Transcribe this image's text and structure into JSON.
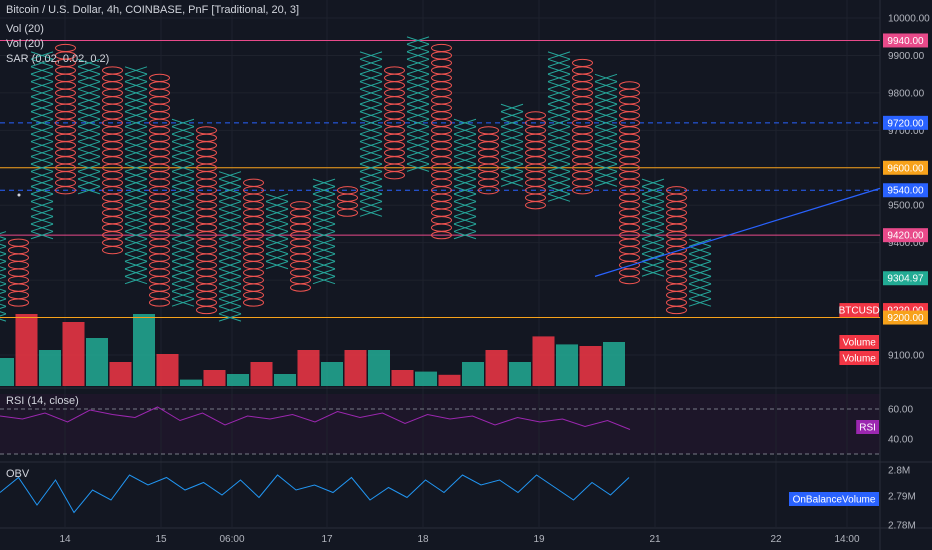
{
  "legend": {
    "title": "Bitcoin / U.S. Dollar, 4h, COINBASE, PnF [Traditional, 20, 3]",
    "vol1": "Vol (20)",
    "vol2": "Vol (20)",
    "sar": "SAR (0.02, 0.02, 0.2)",
    "rsi": "RSI (14, close)",
    "obv": "OBV"
  },
  "colors": {
    "bg": "#131722",
    "x": "#26a69a",
    "o": "#ef5350",
    "pink": "#e84a8a",
    "orange": "#f7a21b",
    "blue": "#2962ff",
    "rsi": "#9c27b0",
    "obv": "#2196f3",
    "grid": "#1e222d"
  },
  "chart_data": {
    "type": "pnf",
    "price_axis": {
      "ticks": [
        "10000.00",
        "9900.00",
        "9800.00",
        "9700.00",
        "9600.00",
        "9500.00",
        "9400.00",
        "9300.00",
        "9200.00",
        "9100.00"
      ],
      "range": [
        9060,
        10040
      ]
    },
    "x_axis": {
      "ticks": [
        "14",
        "15",
        "06:00",
        "17",
        "18",
        "19",
        "21",
        "22",
        "14:00"
      ]
    },
    "box_size": 20,
    "columns": [
      {
        "t": "X",
        "lo": 9200,
        "hi": 9420
      },
      {
        "t": "O",
        "lo": 9240,
        "hi": 9400
      },
      {
        "t": "X",
        "lo": 9420,
        "hi": 9900
      },
      {
        "t": "O",
        "lo": 9540,
        "hi": 9920
      },
      {
        "t": "X",
        "lo": 9540,
        "hi": 9880
      },
      {
        "t": "O",
        "lo": 9380,
        "hi": 9860
      },
      {
        "t": "X",
        "lo": 9300,
        "hi": 9860
      },
      {
        "t": "O",
        "lo": 9240,
        "hi": 9840
      },
      {
        "t": "X",
        "lo": 9240,
        "hi": 9720
      },
      {
        "t": "O",
        "lo": 9220,
        "hi": 9700
      },
      {
        "t": "X",
        "lo": 9200,
        "hi": 9580
      },
      {
        "t": "O",
        "lo": 9240,
        "hi": 9560
      },
      {
        "t": "X",
        "lo": 9340,
        "hi": 9520
      },
      {
        "t": "O",
        "lo": 9280,
        "hi": 9500
      },
      {
        "t": "X",
        "lo": 9300,
        "hi": 9560
      },
      {
        "t": "O",
        "lo": 9480,
        "hi": 9540
      },
      {
        "t": "X",
        "lo": 9480,
        "hi": 9900
      },
      {
        "t": "O",
        "lo": 9580,
        "hi": 9860
      },
      {
        "t": "X",
        "lo": 9600,
        "hi": 9940
      },
      {
        "t": "O",
        "lo": 9420,
        "hi": 9920
      },
      {
        "t": "X",
        "lo": 9420,
        "hi": 9720
      },
      {
        "t": "O",
        "lo": 9540,
        "hi": 9700
      },
      {
        "t": "X",
        "lo": 9560,
        "hi": 9760
      },
      {
        "t": "O",
        "lo": 9500,
        "hi": 9740
      },
      {
        "t": "X",
        "lo": 9520,
        "hi": 9900
      },
      {
        "t": "O",
        "lo": 9540,
        "hi": 9880
      },
      {
        "t": "X",
        "lo": 9560,
        "hi": 9840
      },
      {
        "t": "O",
        "lo": 9300,
        "hi": 9820
      },
      {
        "t": "X",
        "lo": 9320,
        "hi": 9560
      },
      {
        "t": "O",
        "lo": 9220,
        "hi": 9540
      },
      {
        "t": "X",
        "lo": 9240,
        "hi": 9400
      }
    ],
    "volume": [
      0.35,
      0.9,
      0.45,
      0.8,
      0.6,
      0.3,
      0.9,
      0.4,
      0.08,
      0.2,
      0.15,
      0.3,
      0.15,
      0.45,
      0.3,
      0.45,
      0.45,
      0.2,
      0.18,
      0.14,
      0.3,
      0.45,
      0.3,
      0.62,
      0.52,
      0.5,
      0.55
    ],
    "horizontal_lines": [
      {
        "price": 9940,
        "color": "pink",
        "style": "solid"
      },
      {
        "price": 9720,
        "color": "blue",
        "style": "dashed"
      },
      {
        "price": 9600,
        "color": "orange",
        "style": "solid"
      },
      {
        "price": 9540,
        "color": "blue",
        "style": "dashed"
      },
      {
        "price": 9420,
        "color": "pink",
        "style": "solid"
      },
      {
        "price": 9200,
        "color": "orange",
        "style": "solid"
      }
    ],
    "price_labels": [
      {
        "text": "9940.00",
        "price": 9940,
        "color": "pink"
      },
      {
        "text": "9720.00",
        "price": 9720,
        "color": "blue"
      },
      {
        "text": "9600.00",
        "price": 9600,
        "color": "orange"
      },
      {
        "text": "9540.00",
        "price": 9540,
        "color": "blue"
      },
      {
        "text": "9420.00",
        "price": 9420,
        "color": "pink"
      },
      {
        "text": "9304.97",
        "price": 9305,
        "color": "teal"
      },
      {
        "text": "9220.00",
        "price": 9220,
        "color": "red"
      },
      {
        "text": "9200.00",
        "price": 9200,
        "color": "orange"
      }
    ],
    "tags": {
      "symbol": "BTCUSD",
      "volume1": "Volume",
      "volume2": "Volume",
      "rsi": "RSI",
      "obv": "OnBalanceVolume"
    },
    "trend_line": {
      "from_price": 9310,
      "to_price": 9545
    },
    "rsi": {
      "ticks": [
        "60.00",
        "40.00"
      ],
      "values": [
        56,
        54,
        58,
        52,
        60,
        57,
        55,
        62,
        53,
        58,
        50,
        56,
        54,
        57,
        52,
        59,
        55,
        58,
        51,
        57,
        54,
        56,
        50,
        55,
        52,
        54,
        49,
        53,
        47
      ]
    },
    "obv": {
      "ticks": [
        "2.8M",
        "2.79M",
        "2.78M"
      ],
      "values": [
        0.45,
        0.15,
        0.7,
        0.2,
        0.85,
        0.4,
        0.6,
        0.1,
        0.3,
        0.15,
        0.4,
        0.25,
        0.5,
        0.2,
        0.55,
        0.1,
        0.4,
        0.3,
        0.45,
        0.15,
        0.6,
        0.35,
        0.55,
        0.2,
        0.45,
        0.1,
        0.3,
        0.2,
        0.45,
        0.1,
        0.35,
        0.6,
        0.25,
        0.5,
        0.15
      ]
    }
  }
}
